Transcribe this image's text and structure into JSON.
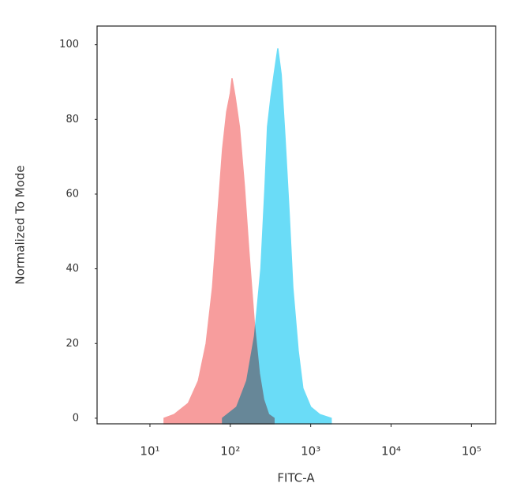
{
  "chart_data": {
    "type": "area",
    "xlabel": "FITC-A",
    "ylabel": "Normalized To Mode",
    "xscale": "log",
    "xlim": [
      2.2,
      200000
    ],
    "ylim": [
      -1.5,
      105
    ],
    "xticks": [
      {
        "value": 10,
        "label": "10¹"
      },
      {
        "value": 100,
        "label": "10²"
      },
      {
        "value": 1000,
        "label": "10³"
      },
      {
        "value": 10000,
        "label": "10⁴"
      },
      {
        "value": 100000,
        "label": "10⁵"
      }
    ],
    "yticks": [
      0,
      20,
      40,
      60,
      80,
      100
    ],
    "series": [
      {
        "color": "#6adcf7",
        "x": [
          80,
          120,
          160,
          200,
          240,
          270,
          290,
          320,
          350,
          390,
          430,
          480,
          540,
          600,
          700,
          800,
          1000,
          1300,
          1800
        ],
        "values": [
          0,
          3,
          10,
          22,
          40,
          62,
          78,
          86,
          92,
          99,
          92,
          75,
          55,
          35,
          18,
          8,
          3,
          1,
          0
        ]
      },
      {
        "color": "#f79d9d",
        "x": [
          15,
          20,
          30,
          40,
          50,
          60,
          70,
          80,
          90,
          100,
          105,
          115,
          130,
          150,
          170,
          200,
          230,
          260,
          300,
          350
        ],
        "values": [
          0,
          1,
          4,
          10,
          20,
          35,
          55,
          72,
          82,
          87,
          91,
          86,
          78,
          62,
          45,
          25,
          12,
          5,
          1,
          0
        ]
      }
    ]
  }
}
